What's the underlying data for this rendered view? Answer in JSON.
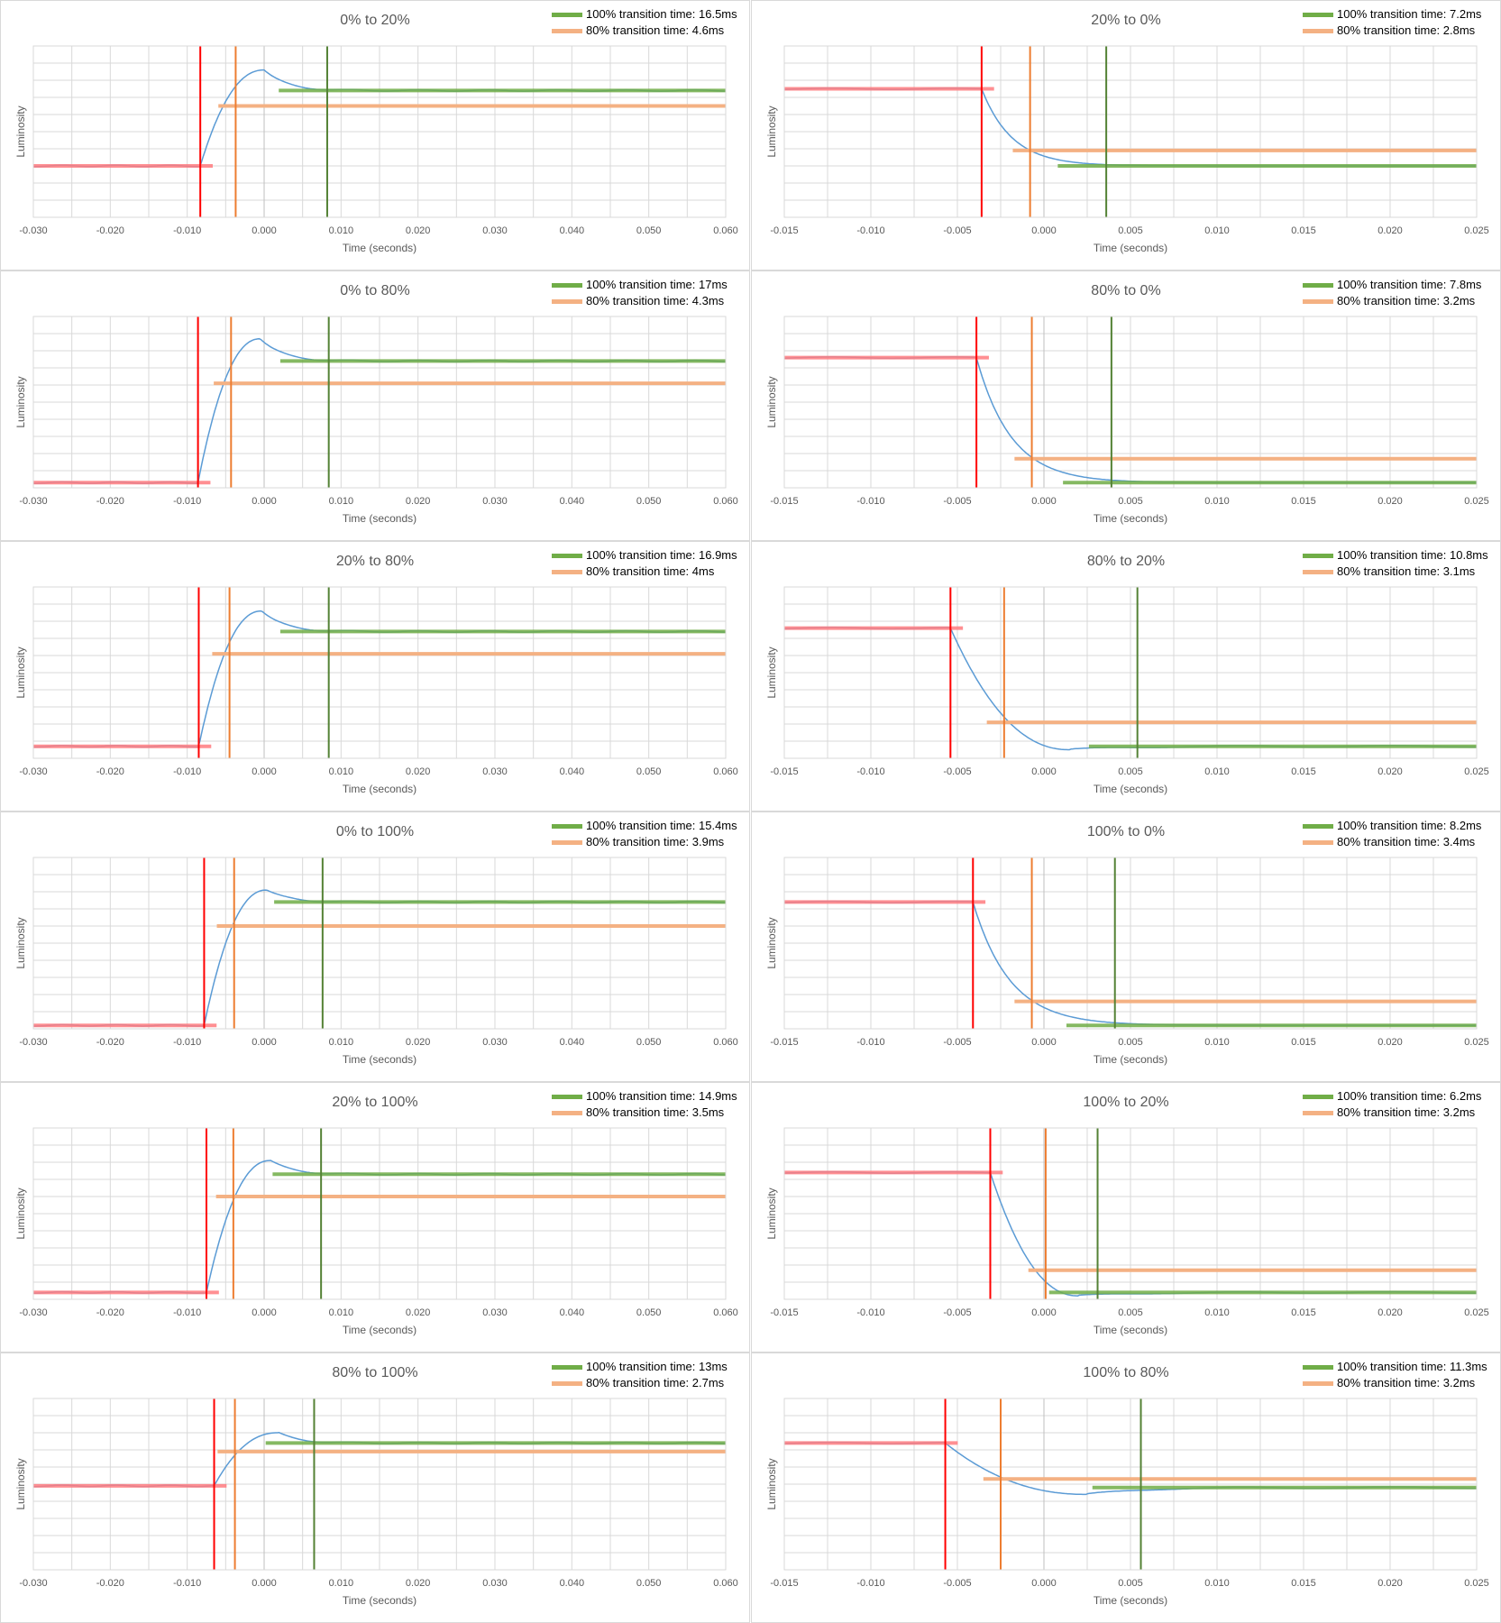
{
  "colors": {
    "response": "#5b9bd5",
    "green_line": "#548235",
    "green_legend": "#70ad47",
    "orange_line": "#ed7d31",
    "orange_legend": "#f4b183",
    "red_line": "#ff0000",
    "red_level": "#ff7c80",
    "grid": "#d9d9d9"
  },
  "chart_data": [
    {
      "type": "line",
      "title": "0% to 20%",
      "xlabel": "Time (seconds)",
      "ylabel": "Luminosity",
      "xlim": [
        -0.03,
        0.06
      ],
      "xticks": [
        "-0.030",
        "-0.020",
        "-0.010",
        "0.000",
        "0.010",
        "0.020",
        "0.030",
        "0.040",
        "0.050",
        "0.060"
      ],
      "legend": [
        "100% transition time: 16.5ms",
        "80% transition time: 4.6ms"
      ],
      "start_time": -0.0083,
      "end_80_time": -0.0037,
      "end_100_time": 0.0082,
      "start_level": 0.3,
      "end_level": 0.74,
      "level_80": 0.65,
      "peak": {
        "x": 0.0,
        "y": 0.86
      }
    },
    {
      "type": "line",
      "title": "20% to 0%",
      "xlabel": "Time (seconds)",
      "ylabel": "Luminosity",
      "xlim": [
        -0.015,
        0.025
      ],
      "xticks": [
        "-0.015",
        "-0.010",
        "-0.005",
        "0.000",
        "0.005",
        "0.010",
        "0.015",
        "0.020",
        "0.025"
      ],
      "legend": [
        "100% transition time: 7.2ms",
        "80% transition time: 2.8ms"
      ],
      "start_time": -0.0036,
      "end_80_time": -0.0008,
      "end_100_time": 0.0036,
      "start_level": 0.75,
      "end_level": 0.3,
      "level_80": 0.39,
      "dip": null
    },
    {
      "type": "line",
      "title": "0% to 80%",
      "xlabel": "Time (seconds)",
      "ylabel": "Luminosity",
      "xlim": [
        -0.03,
        0.06
      ],
      "xticks": [
        "-0.030",
        "-0.020",
        "-0.010",
        "0.000",
        "0.010",
        "0.020",
        "0.030",
        "0.040",
        "0.050",
        "0.060"
      ],
      "legend": [
        "100% transition time: 17ms",
        "80% transition time: 4.3ms"
      ],
      "start_time": -0.0086,
      "end_80_time": -0.0043,
      "end_100_time": 0.0084,
      "start_level": 0.03,
      "end_level": 0.74,
      "level_80": 0.61,
      "peak": {
        "x": -0.0005,
        "y": 0.87
      }
    },
    {
      "type": "line",
      "title": "80% to 0%",
      "xlabel": "Time (seconds)",
      "ylabel": "Luminosity",
      "xlim": [
        -0.015,
        0.025
      ],
      "xticks": [
        "-0.015",
        "-0.010",
        "-0.005",
        "0.000",
        "0.005",
        "0.010",
        "0.015",
        "0.020",
        "0.025"
      ],
      "legend": [
        "100% transition time: 7.8ms",
        "80% transition time: 3.2ms"
      ],
      "start_time": -0.0039,
      "end_80_time": -0.0007,
      "end_100_time": 0.0039,
      "start_level": 0.76,
      "end_level": 0.03,
      "level_80": 0.17,
      "dip": null
    },
    {
      "type": "line",
      "title": "20% to 80%",
      "xlabel": "Time (seconds)",
      "ylabel": "Luminosity",
      "xlim": [
        -0.03,
        0.06
      ],
      "xticks": [
        "-0.030",
        "-0.020",
        "-0.010",
        "0.000",
        "0.010",
        "0.020",
        "0.030",
        "0.040",
        "0.050",
        "0.060"
      ],
      "legend": [
        "100% transition time: 16.9ms",
        "80% transition time: 4ms"
      ],
      "start_time": -0.0085,
      "end_80_time": -0.0045,
      "end_100_time": 0.0084,
      "start_level": 0.07,
      "end_level": 0.74,
      "level_80": 0.61,
      "peak": {
        "x": -0.0003,
        "y": 0.86
      }
    },
    {
      "type": "line",
      "title": "80% to 20%",
      "xlabel": "Time (seconds)",
      "ylabel": "Luminosity",
      "xlim": [
        -0.015,
        0.025
      ],
      "xticks": [
        "-0.015",
        "-0.010",
        "-0.005",
        "0.000",
        "0.005",
        "0.010",
        "0.015",
        "0.020",
        "0.025"
      ],
      "legend": [
        "100% transition time: 10.8ms",
        "80% transition time: 3.1ms"
      ],
      "start_time": -0.0054,
      "end_80_time": -0.0023,
      "end_100_time": 0.0054,
      "start_level": 0.76,
      "end_level": 0.07,
      "level_80": 0.21,
      "dip": {
        "x": 0.0015,
        "y": 0.05
      }
    },
    {
      "type": "line",
      "title": "0% to 100%",
      "xlabel": "Time (seconds)",
      "ylabel": "Luminosity",
      "xlim": [
        -0.03,
        0.06
      ],
      "xticks": [
        "-0.030",
        "-0.020",
        "-0.010",
        "0.000",
        "0.010",
        "0.020",
        "0.030",
        "0.040",
        "0.050",
        "0.060"
      ],
      "legend": [
        "100% transition time: 15.4ms",
        "80% transition time: 3.9ms"
      ],
      "start_time": -0.0078,
      "end_80_time": -0.0039,
      "end_100_time": 0.0076,
      "start_level": 0.02,
      "end_level": 0.74,
      "level_80": 0.6,
      "peak": {
        "x": 0.0003,
        "y": 0.81
      }
    },
    {
      "type": "line",
      "title": "100% to 0%",
      "xlabel": "Time (seconds)",
      "ylabel": "Luminosity",
      "xlim": [
        -0.015,
        0.025
      ],
      "xticks": [
        "-0.015",
        "-0.010",
        "-0.005",
        "0.000",
        "0.005",
        "0.010",
        "0.015",
        "0.020",
        "0.025"
      ],
      "legend": [
        "100% transition time: 8.2ms",
        "80% transition time: 3.4ms"
      ],
      "start_time": -0.0041,
      "end_80_time": -0.0007,
      "end_100_time": 0.0041,
      "start_level": 0.74,
      "end_level": 0.02,
      "level_80": 0.16,
      "dip": null
    },
    {
      "type": "line",
      "title": "20% to 100%",
      "xlabel": "Time (seconds)",
      "ylabel": "Luminosity",
      "xlim": [
        -0.03,
        0.06
      ],
      "xticks": [
        "-0.030",
        "-0.020",
        "-0.010",
        "0.000",
        "0.010",
        "0.020",
        "0.030",
        "0.040",
        "0.050",
        "0.060"
      ],
      "legend": [
        "100% transition time: 14.9ms",
        "80% transition time: 3.5ms"
      ],
      "start_time": -0.0075,
      "end_80_time": -0.004,
      "end_100_time": 0.0074,
      "start_level": 0.04,
      "end_level": 0.73,
      "level_80": 0.6,
      "peak": {
        "x": 0.0008,
        "y": 0.81
      }
    },
    {
      "type": "line",
      "title": "100% to 20%",
      "xlabel": "Time (seconds)",
      "ylabel": "Luminosity",
      "xlim": [
        -0.015,
        0.025
      ],
      "xticks": [
        "-0.015",
        "-0.010",
        "-0.005",
        "0.000",
        "0.005",
        "0.010",
        "0.015",
        "0.020",
        "0.025"
      ],
      "legend": [
        "100% transition time: 6.2ms",
        "80% transition time: 3.2ms"
      ],
      "start_time": -0.0031,
      "end_80_time": 0.0001,
      "end_100_time": 0.0031,
      "start_level": 0.74,
      "end_level": 0.04,
      "level_80": 0.17,
      "dip": {
        "x": 0.002,
        "y": 0.02
      }
    },
    {
      "type": "line",
      "title": "80% to 100%",
      "xlabel": "Time (seconds)",
      "ylabel": "Luminosity",
      "xlim": [
        -0.03,
        0.06
      ],
      "xticks": [
        "-0.030",
        "-0.020",
        "-0.010",
        "0.000",
        "0.010",
        "0.020",
        "0.030",
        "0.040",
        "0.050",
        "0.060"
      ],
      "legend": [
        "100% transition time: 13ms",
        "80% transition time: 2.7ms"
      ],
      "start_time": -0.0065,
      "end_80_time": -0.0038,
      "end_100_time": 0.0065,
      "start_level": 0.49,
      "end_level": 0.74,
      "level_80": 0.69,
      "peak": {
        "x": 0.0018,
        "y": 0.8
      }
    },
    {
      "type": "line",
      "title": "100% to 80%",
      "xlabel": "Time (seconds)",
      "ylabel": "Luminosity",
      "xlim": [
        -0.015,
        0.025
      ],
      "xticks": [
        "-0.015",
        "-0.010",
        "-0.005",
        "0.000",
        "0.005",
        "0.010",
        "0.015",
        "0.020",
        "0.025"
      ],
      "legend": [
        "100% transition time: 11.3ms",
        "80% transition time: 3.2ms"
      ],
      "start_time": -0.0057,
      "end_80_time": -0.0025,
      "end_100_time": 0.0056,
      "start_level": 0.74,
      "end_level": 0.48,
      "level_80": 0.53,
      "dip": {
        "x": 0.0025,
        "y": 0.44
      }
    }
  ]
}
